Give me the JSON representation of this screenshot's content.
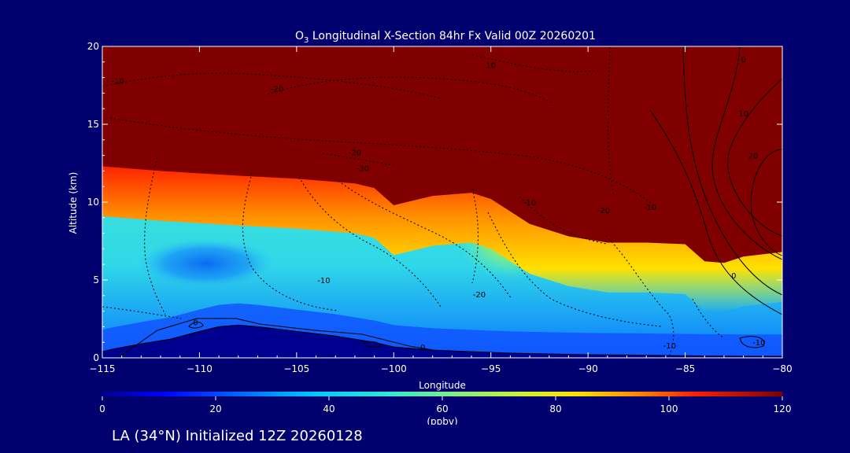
{
  "chart_data": {
    "type": "heatmap",
    "title_prefix": "O",
    "title_subscript": "3",
    "title_rest": " Longitudinal X-Section 84hr  Fx Valid 00Z 20260201",
    "xlabel": "Longitude",
    "ylabel": "Altitude (km)",
    "xlim": [
      -115,
      -80
    ],
    "ylim": [
      0,
      20
    ],
    "x_ticks": [
      -115,
      -110,
      -105,
      -100,
      -95,
      -90,
      -85,
      -80
    ],
    "x_tick_labels": [
      "−115",
      "−110",
      "−105",
      "−100",
      "−95",
      "−90",
      "−85",
      "−80"
    ],
    "y_ticks": [
      0,
      5,
      10,
      15,
      20
    ],
    "y_tick_labels": [
      "0",
      "5",
      "10",
      "15",
      "20"
    ],
    "colorbar": {
      "units": "(ppbv)",
      "min": 0,
      "max": 120,
      "ticks": [
        0,
        20,
        40,
        60,
        80,
        100,
        120
      ],
      "tick_labels": [
        "0",
        "20",
        "40",
        "60",
        "80",
        "100",
        "120"
      ]
    },
    "ozone_field": {
      "units": "ppbv",
      "tropopause": {
        "lon": [
          -115,
          -112,
          -108,
          -105,
          -102,
          -101,
          -100,
          -98,
          -96,
          -95,
          -93,
          -91,
          -89,
          -87,
          -85,
          -84,
          -83,
          -82,
          -80
        ],
        "alt_km": [
          12.3,
          12.0,
          11.7,
          11.5,
          11.2,
          10.9,
          9.8,
          10.4,
          10.6,
          10.2,
          8.6,
          7.8,
          7.4,
          7.4,
          7.3,
          6.2,
          6.1,
          6.5,
          6.8
        ]
      },
      "stratosphere_value": 120,
      "minimum": {
        "lon": -109.5,
        "alt_km": 6.0,
        "value": 38
      },
      "surface_layer_value": 18,
      "midlevel_max": {
        "lon": -95,
        "alt_km": 8.0,
        "value": 70
      }
    },
    "terrain": {
      "lon": [
        -115,
        -114.5,
        -113,
        -111.5,
        -110,
        -109,
        -108,
        -107,
        -105,
        -103,
        -101,
        -100,
        -98,
        -96,
        -94,
        -92,
        -90,
        -88,
        -86,
        -84,
        -82,
        -80
      ],
      "alt_km": [
        0.4,
        0.55,
        0.9,
        1.2,
        1.7,
        2.0,
        2.1,
        2.0,
        1.7,
        1.4,
        1.0,
        0.7,
        0.5,
        0.4,
        0.3,
        0.25,
        0.2,
        0.18,
        0.15,
        0.12,
        0.1,
        0.1
      ]
    },
    "contour_labels": [
      {
        "text": "-10",
        "lon": -114.2,
        "alt_km": 17.6
      },
      {
        "text": "-20",
        "lon": -106.0,
        "alt_km": 17.1
      },
      {
        "text": "10",
        "lon": -95.0,
        "alt_km": 18.6
      },
      {
        "text": "0",
        "lon": -82.0,
        "alt_km": 19.0
      },
      {
        "text": "10",
        "lon": -82.0,
        "alt_km": 15.5
      },
      {
        "text": "20",
        "lon": -81.5,
        "alt_km": 12.8
      },
      {
        "text": "-20",
        "lon": -102.0,
        "alt_km": 13.0
      },
      {
        "text": "-30",
        "lon": -101.6,
        "alt_km": 12.0
      },
      {
        "text": "-20",
        "lon": -89.2,
        "alt_km": 9.3
      },
      {
        "text": "-10",
        "lon": -86.8,
        "alt_km": 9.5
      },
      {
        "text": "-10",
        "lon": -93.0,
        "alt_km": 9.8
      },
      {
        "text": "-10",
        "lon": -103.6,
        "alt_km": 4.8
      },
      {
        "text": "-20",
        "lon": -95.6,
        "alt_km": 3.9
      },
      {
        "text": "0",
        "lon": -82.5,
        "alt_km": 5.1
      },
      {
        "text": "0",
        "lon": -110.2,
        "alt_km": 2.1
      },
      {
        "text": "0",
        "lon": -98.5,
        "alt_km": 0.5
      },
      {
        "text": "-10",
        "lon": -85.8,
        "alt_km": 0.6
      },
      {
        "text": "-10",
        "lon": -81.2,
        "alt_km": 0.8
      }
    ]
  },
  "footer": {
    "caption": "LA (34°N) Initialized 12Z 20260128"
  }
}
